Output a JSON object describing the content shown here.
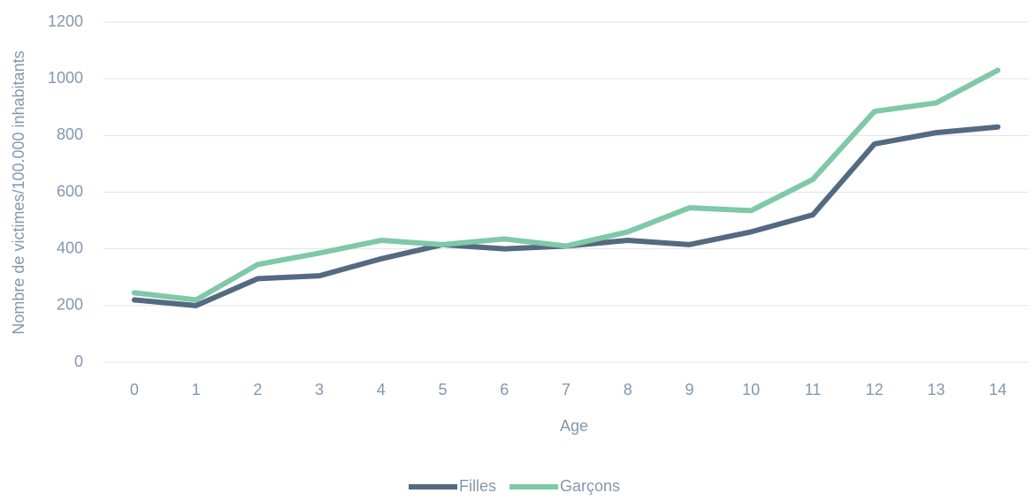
{
  "chart_data": {
    "type": "line",
    "xlabel": "Age",
    "ylabel": "Nombre de victimes/100.000 inhabitants",
    "categories": [
      "0",
      "1",
      "2",
      "3",
      "4",
      "5",
      "6",
      "7",
      "8",
      "9",
      "10",
      "11",
      "12",
      "13",
      "14"
    ],
    "series": [
      {
        "name": "Filles",
        "color": "#546a80",
        "values": [
          220,
          200,
          295,
          305,
          365,
          415,
          400,
          410,
          430,
          415,
          460,
          520,
          770,
          810,
          830
        ]
      },
      {
        "name": "Garçons",
        "color": "#7fc8a8",
        "values": [
          245,
          220,
          345,
          385,
          430,
          415,
          435,
          410,
          460,
          545,
          535,
          645,
          885,
          915,
          1030
        ]
      }
    ],
    "ylim": [
      0,
      1200
    ],
    "yticks": [
      0,
      200,
      400,
      600,
      800,
      1000,
      1200
    ],
    "grid": true,
    "legend": "bottom"
  }
}
